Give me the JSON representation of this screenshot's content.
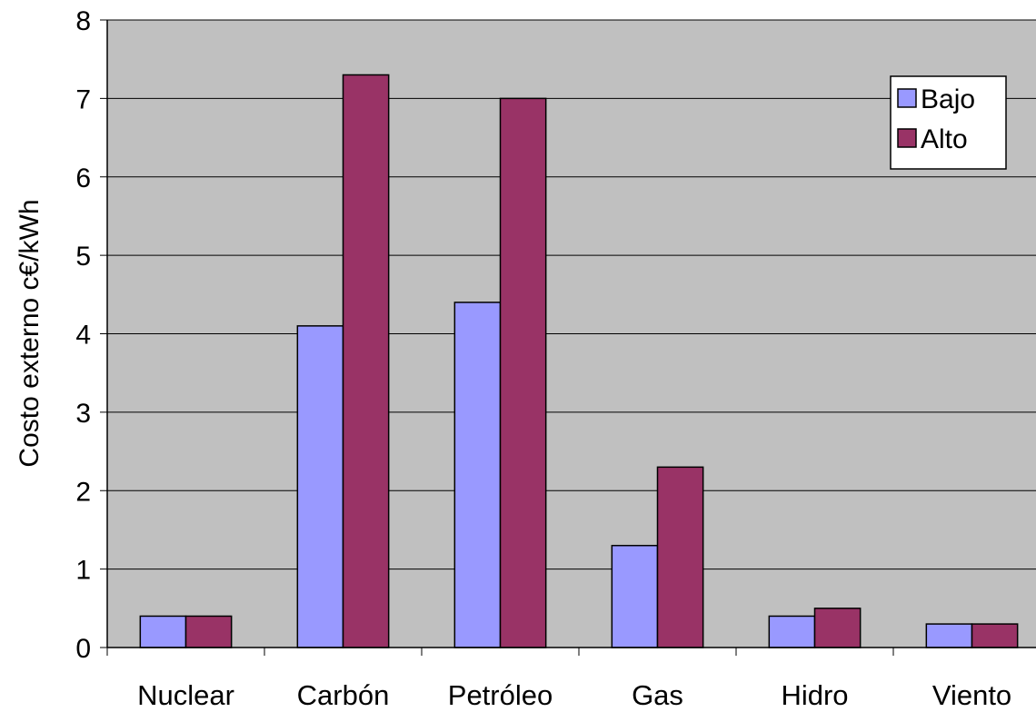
{
  "chart_data": {
    "type": "bar",
    "title": "",
    "xlabel": "",
    "ylabel": "Costo externo c€/kWh",
    "categories": [
      "Nuclear",
      "Carbón",
      "Petróleo",
      "Gas",
      "Hidro",
      "Viento"
    ],
    "series": [
      {
        "name": "Bajo",
        "color": "#9999ff",
        "values": [
          0.4,
          4.1,
          4.4,
          1.3,
          0.4,
          0.3
        ]
      },
      {
        "name": "Alto",
        "color": "#993366",
        "values": [
          0.4,
          7.3,
          7.0,
          2.3,
          0.5,
          0.3
        ]
      }
    ],
    "ylim": [
      0,
      8
    ],
    "yticks": [
      0,
      1,
      2,
      3,
      4,
      5,
      6,
      7,
      8
    ],
    "grid": true,
    "legend": "top-right",
    "plot_background": "#c0c0c0"
  }
}
